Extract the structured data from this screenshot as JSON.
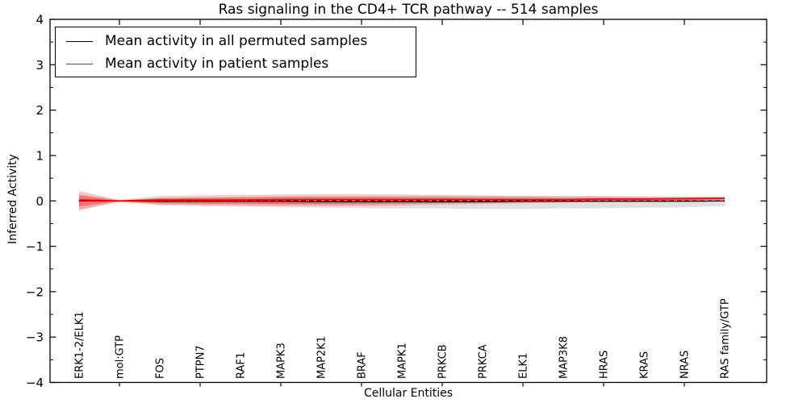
{
  "chart_data": {
    "type": "line",
    "title": "Ras signaling in the CD4+ TCR pathway -- 514 samples",
    "xlabel": "Cellular Entities",
    "ylabel": "Inferred Activity",
    "xlim": [
      -0.72,
      17.04
    ],
    "ylim": [
      -4,
      4
    ],
    "grid": false,
    "categories": [
      "ERK1-2/ELK1",
      "mol:GTP",
      "FOS",
      "PTPN7",
      "RAF1",
      "MAPK3",
      "MAP2K1",
      "BRAF",
      "MAPK1",
      "PRKCB",
      "PRKCA",
      "ELK1",
      "MAP3K8",
      "HRAS",
      "KRAS",
      "NRAS",
      "RAS family/GTP"
    ],
    "yticks_major": [
      -4,
      -3,
      -2,
      -1,
      0,
      1,
      2,
      3,
      4
    ],
    "ytick_labels": [
      "−4",
      "−3",
      "−2",
      "−1",
      "0",
      "1",
      "2",
      "3",
      "4"
    ],
    "ytick_minor_step": 0.5,
    "xtick_marks_at": [
      1,
      3,
      5,
      7,
      9,
      11,
      13,
      15
    ],
    "reference_line": {
      "y": 0,
      "color": "#000000",
      "style": "dashed"
    },
    "series": [
      {
        "name": "Mean activity in all permuted samples",
        "color": "#000000",
        "line_width": 1.2,
        "values": [
          0.0,
          0.0,
          -0.01,
          -0.01,
          -0.01,
          -0.01,
          -0.02,
          -0.02,
          -0.02,
          -0.02,
          -0.02,
          -0.01,
          -0.01,
          -0.01,
          -0.01,
          -0.01,
          0.0
        ],
        "band": {
          "upper": [
            0.1,
            0.01,
            0.06,
            0.07,
            0.08,
            0.09,
            0.1,
            0.1,
            0.11,
            0.11,
            0.11,
            0.11,
            0.11,
            0.11,
            0.1,
            0.1,
            0.1
          ],
          "lower": [
            -0.22,
            -0.01,
            -0.1,
            -0.12,
            -0.13,
            -0.14,
            -0.15,
            -0.16,
            -0.17,
            -0.17,
            -0.18,
            -0.18,
            -0.17,
            -0.16,
            -0.15,
            -0.14,
            -0.12
          ],
          "color": "#000000",
          "opacity": 0.12
        }
      },
      {
        "name": "Mean activity in patient samples",
        "color": "#ff0000",
        "line_width": 1.8,
        "values": [
          0.02,
          0.0,
          0.02,
          0.02,
          0.02,
          0.03,
          0.03,
          0.03,
          0.03,
          0.03,
          0.03,
          0.03,
          0.03,
          0.04,
          0.04,
          0.05,
          0.06
        ],
        "band_outer": {
          "upper": [
            0.22,
            0.02,
            0.11,
            0.12,
            0.13,
            0.14,
            0.15,
            0.15,
            0.14,
            0.13,
            0.12,
            0.11,
            0.1,
            0.1,
            0.09,
            0.08,
            0.08
          ],
          "lower": [
            -0.19,
            -0.02,
            -0.08,
            -0.09,
            -0.1,
            -0.11,
            -0.11,
            -0.11,
            -0.1,
            -0.08,
            -0.07,
            -0.05,
            -0.04,
            -0.02,
            -0.01,
            0.0,
            0.02
          ],
          "color": "#ff0000",
          "opacity": 0.22
        },
        "band_inner": {
          "upper": [
            0.14,
            0.01,
            0.06,
            0.07,
            0.08,
            0.09,
            0.09,
            0.09,
            0.08,
            0.08,
            0.07,
            0.07,
            0.06,
            0.06,
            0.06,
            0.06,
            0.07
          ],
          "lower": [
            -0.12,
            -0.01,
            -0.05,
            -0.06,
            -0.06,
            -0.07,
            -0.07,
            -0.07,
            -0.06,
            -0.05,
            -0.04,
            -0.03,
            -0.02,
            -0.01,
            0.0,
            0.01,
            0.03
          ],
          "color": "#ff0000",
          "opacity": 0.33
        }
      }
    ],
    "legend": {
      "position": "upper left",
      "entries": [
        {
          "label": "Mean activity in all permuted samples",
          "color": "#000000"
        },
        {
          "label": "Mean activity in patient samples",
          "color": "#ff0000"
        }
      ]
    }
  }
}
